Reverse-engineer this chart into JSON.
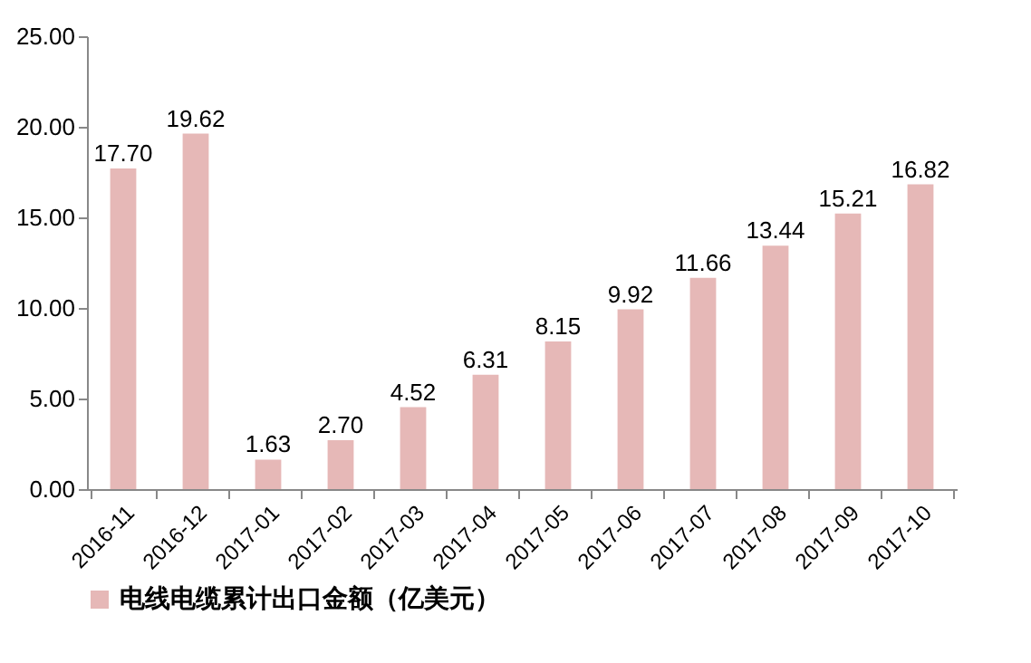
{
  "chart_data": {
    "type": "bar",
    "categories": [
      "2016-11",
      "2016-12",
      "2017-01",
      "2017-02",
      "2017-03",
      "2017-04",
      "2017-05",
      "2017-06",
      "2017-07",
      "2017-08",
      "2017-09",
      "2017-10"
    ],
    "series": [
      {
        "name": "电线电缆累计出口金额（亿美元）",
        "color": "#e6b8b7",
        "values": [
          17.7,
          19.62,
          1.63,
          2.7,
          4.52,
          6.31,
          8.15,
          9.92,
          11.66,
          13.44,
          15.21,
          16.82
        ],
        "value_labels": [
          "17.70",
          "19.62",
          "1.63",
          "2.70",
          "4.52",
          "6.31",
          "8.15",
          "9.92",
          "11.66",
          "13.44",
          "15.21",
          "16.82"
        ]
      }
    ],
    "ylim": [
      0,
      25
    ],
    "yticks": [
      {
        "value": 0,
        "label": "0.00"
      },
      {
        "value": 5,
        "label": "5.00"
      },
      {
        "value": 10,
        "label": "10.00"
      },
      {
        "value": 15,
        "label": "15.00"
      },
      {
        "value": 20,
        "label": "20.00"
      },
      {
        "value": 25,
        "label": "25.00"
      }
    ],
    "grid": false,
    "legend": "bottom"
  }
}
